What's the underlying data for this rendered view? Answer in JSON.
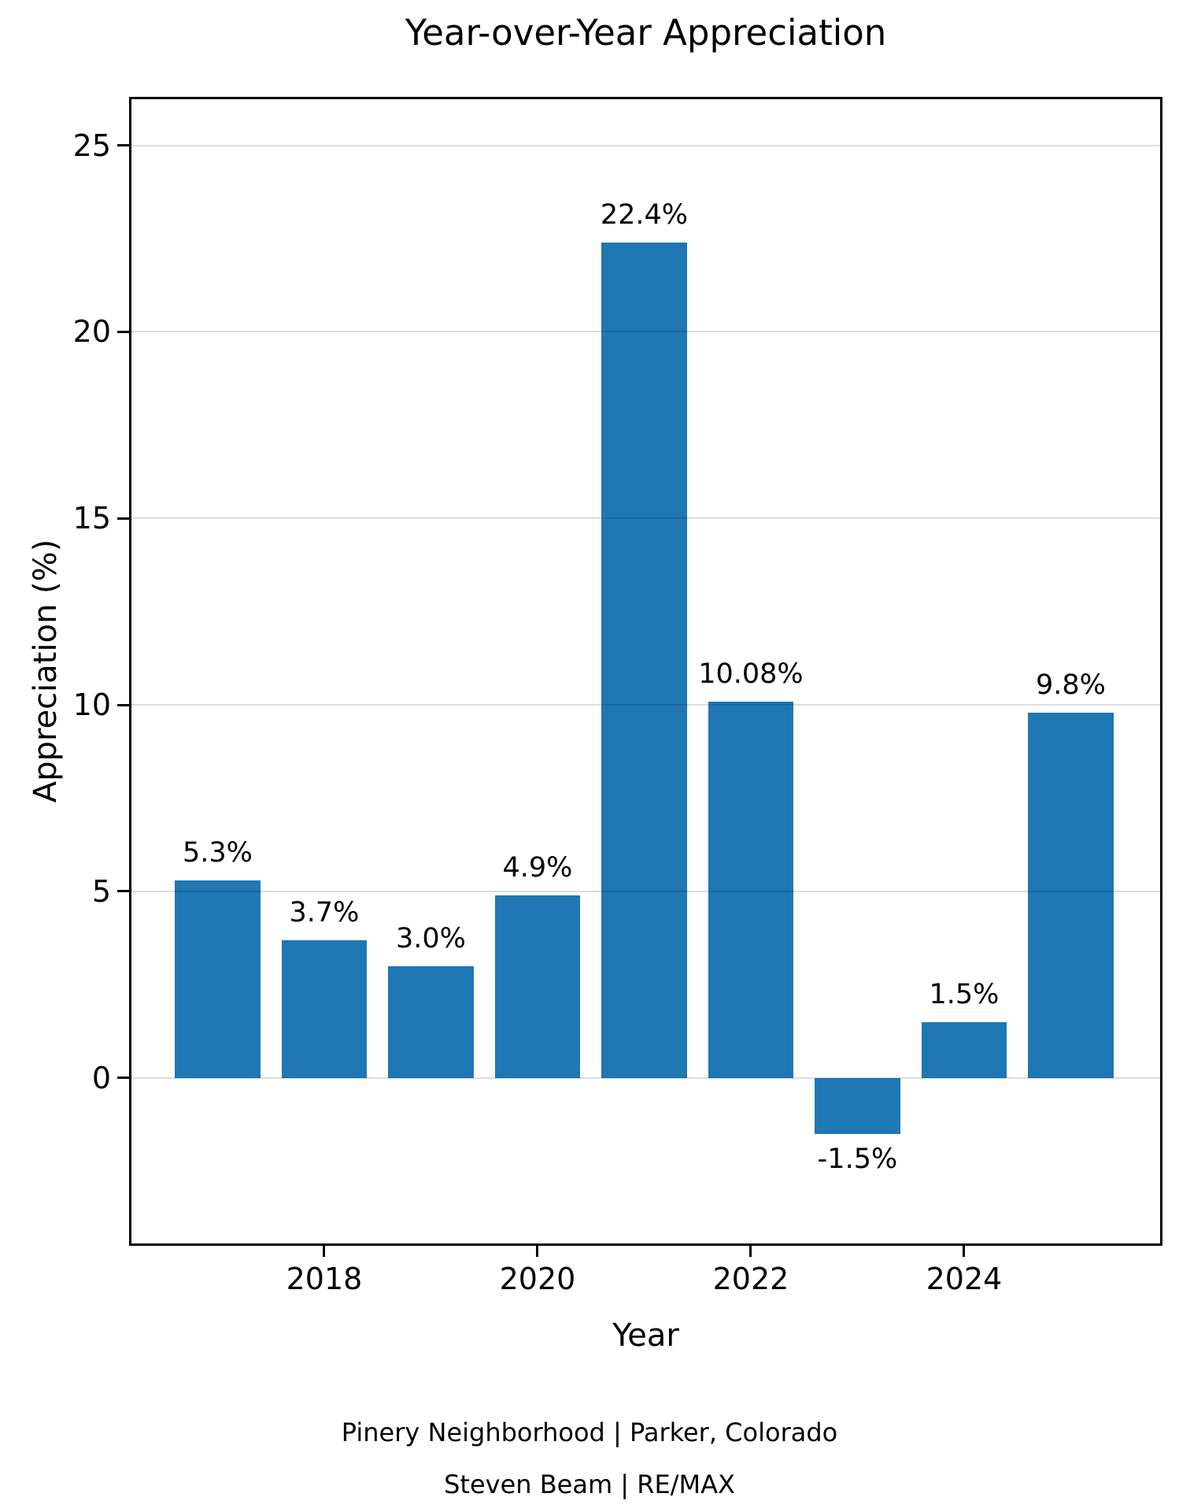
{
  "chart_data": {
    "type": "bar",
    "title": "Year-over-Year Appreciation",
    "xlabel": "Year",
    "ylabel": "Appreciation (%)",
    "categories": [
      2017,
      2018,
      2019,
      2020,
      2021,
      2022,
      2023,
      2024,
      2025
    ],
    "values": [
      5.3,
      3.7,
      3.0,
      4.9,
      22.4,
      10.08,
      -1.5,
      1.5,
      9.8
    ],
    "bar_labels": [
      "5.3%",
      "3.7%",
      "3.0%",
      "4.9%",
      "22.4%",
      "10.08%",
      "-1.5%",
      "1.5%",
      "9.8%"
    ],
    "yticks": [
      0,
      5,
      10,
      15,
      20,
      25
    ],
    "xticks": [
      2018,
      2020,
      2022,
      2024
    ],
    "ylim": [
      -4.5,
      26.3
    ],
    "xlim": [
      2016.17,
      2025.86
    ],
    "bar_width": 0.8,
    "bar_color": "#1f77b4",
    "grid": true,
    "grid_color": "#dbdbdb",
    "grid_position": "over-bars",
    "legend": "none"
  },
  "footer": {
    "line1": "Pinery Neighborhood | Parker, Colorado",
    "line2": "Steven Beam | RE/MAX"
  }
}
